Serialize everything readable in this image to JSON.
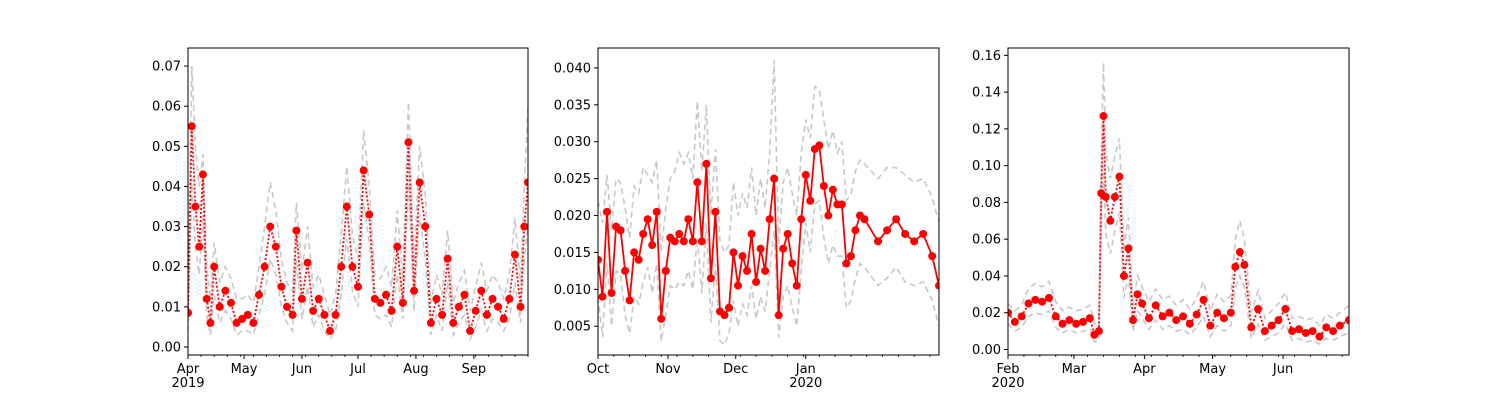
{
  "figure": {
    "background": "#ffffff",
    "series_color": "#ff0000",
    "band_color": "#c8c8c8"
  },
  "chart_data": [
    {
      "type": "line",
      "ylim": [
        -0.002,
        0.0745
      ],
      "yticks": [
        0.0,
        0.01,
        0.02,
        0.03,
        0.04,
        0.05,
        0.06,
        0.07
      ],
      "ytick_labels": [
        "0.00",
        "0.01",
        "0.02",
        "0.03",
        "0.04",
        "0.05",
        "0.06",
        "0.07"
      ],
      "xlim": [
        "2019-04-01",
        "2019-09-30"
      ],
      "xticks": [
        {
          "date": "2019-04-01",
          "label": "Apr",
          "sublabel": "2019"
        },
        {
          "date": "2019-05-01",
          "label": "May",
          "sublabel": ""
        },
        {
          "date": "2019-06-01",
          "label": "Jun",
          "sublabel": ""
        },
        {
          "date": "2019-07-01",
          "label": "Jul",
          "sublabel": ""
        },
        {
          "date": "2019-08-01",
          "label": "Aug",
          "sublabel": ""
        },
        {
          "date": "2019-09-01",
          "label": "Sep",
          "sublabel": ""
        }
      ],
      "line_style": "dotted",
      "series_x": [
        "2019-04-01",
        "2019-04-03",
        "2019-04-05",
        "2019-04-07",
        "2019-04-09",
        "2019-04-11",
        "2019-04-13",
        "2019-04-15",
        "2019-04-18",
        "2019-04-21",
        "2019-04-24",
        "2019-04-27",
        "2019-04-30",
        "2019-05-03",
        "2019-05-06",
        "2019-05-09",
        "2019-05-12",
        "2019-05-15",
        "2019-05-18",
        "2019-05-21",
        "2019-05-24",
        "2019-05-27",
        "2019-05-29",
        "2019-06-01",
        "2019-06-04",
        "2019-06-07",
        "2019-06-10",
        "2019-06-13",
        "2019-06-16",
        "2019-06-19",
        "2019-06-22",
        "2019-06-25",
        "2019-06-28",
        "2019-07-01",
        "2019-07-04",
        "2019-07-07",
        "2019-07-10",
        "2019-07-13",
        "2019-07-16",
        "2019-07-19",
        "2019-07-22",
        "2019-07-25",
        "2019-07-28",
        "2019-07-31",
        "2019-08-03",
        "2019-08-06",
        "2019-08-09",
        "2019-08-12",
        "2019-08-15",
        "2019-08-18",
        "2019-08-21",
        "2019-08-24",
        "2019-08-27",
        "2019-08-30",
        "2019-09-02",
        "2019-09-05",
        "2019-09-08",
        "2019-09-11",
        "2019-09-14",
        "2019-09-17",
        "2019-09-20",
        "2019-09-23",
        "2019-09-26",
        "2019-09-28",
        "2019-09-30"
      ],
      "series_y": [
        0.0085,
        0.055,
        0.035,
        0.025,
        0.043,
        0.012,
        0.006,
        0.02,
        0.01,
        0.014,
        0.011,
        0.006,
        0.007,
        0.008,
        0.006,
        0.013,
        0.02,
        0.03,
        0.025,
        0.015,
        0.01,
        0.008,
        0.029,
        0.012,
        0.021,
        0.009,
        0.012,
        0.008,
        0.004,
        0.008,
        0.02,
        0.035,
        0.02,
        0.015,
        0.044,
        0.033,
        0.012,
        0.011,
        0.013,
        0.009,
        0.025,
        0.011,
        0.051,
        0.014,
        0.041,
        0.03,
        0.006,
        0.012,
        0.008,
        0.022,
        0.006,
        0.01,
        0.013,
        0.004,
        0.009,
        0.014,
        0.008,
        0.012,
        0.01,
        0.007,
        0.012,
        0.023,
        0.01,
        0.03,
        0.041
      ],
      "band_upper": [
        0.015,
        0.07,
        0.05,
        0.04,
        0.048,
        0.02,
        0.012,
        0.026,
        0.016,
        0.02,
        0.017,
        0.012,
        0.012,
        0.013,
        0.011,
        0.02,
        0.03,
        0.041,
        0.034,
        0.022,
        0.016,
        0.014,
        0.036,
        0.019,
        0.03,
        0.015,
        0.018,
        0.013,
        0.008,
        0.013,
        0.028,
        0.045,
        0.028,
        0.022,
        0.054,
        0.04,
        0.018,
        0.017,
        0.02,
        0.015,
        0.034,
        0.017,
        0.061,
        0.021,
        0.05,
        0.038,
        0.011,
        0.018,
        0.013,
        0.029,
        0.011,
        0.016,
        0.019,
        0.009,
        0.015,
        0.021,
        0.014,
        0.018,
        0.016,
        0.012,
        0.018,
        0.032,
        0.016,
        0.04,
        0.06
      ],
      "band_lower": [
        0.004,
        0.042,
        0.025,
        0.018,
        0.033,
        0.008,
        0.003,
        0.013,
        0.006,
        0.009,
        0.007,
        0.003,
        0.004,
        0.004,
        0.003,
        0.008,
        0.013,
        0.022,
        0.018,
        0.01,
        0.006,
        0.004,
        0.022,
        0.007,
        0.015,
        0.005,
        0.008,
        0.004,
        0.002,
        0.004,
        0.013,
        0.027,
        0.014,
        0.01,
        0.036,
        0.026,
        0.008,
        0.007,
        0.008,
        0.005,
        0.018,
        0.007,
        0.042,
        0.009,
        0.033,
        0.022,
        0.003,
        0.008,
        0.004,
        0.016,
        0.003,
        0.006,
        0.008,
        0.002,
        0.005,
        0.009,
        0.004,
        0.007,
        0.006,
        0.004,
        0.007,
        0.016,
        0.006,
        0.022,
        0.03
      ]
    },
    {
      "type": "line",
      "ylim": [
        0.0011,
        0.0427
      ],
      "yticks": [
        0.005,
        0.01,
        0.015,
        0.02,
        0.025,
        0.03,
        0.035,
        0.04
      ],
      "ytick_labels": [
        "0.005",
        "0.010",
        "0.015",
        "0.020",
        "0.025",
        "0.030",
        "0.035",
        "0.040"
      ],
      "xlim": [
        "2019-10-01",
        "2020-02-29"
      ],
      "xticks": [
        {
          "date": "2019-10-01",
          "label": "Oct",
          "sublabel": ""
        },
        {
          "date": "2019-11-01",
          "label": "Nov",
          "sublabel": ""
        },
        {
          "date": "2019-12-01",
          "label": "Dec",
          "sublabel": ""
        },
        {
          "date": "2020-01-01",
          "label": "Jan",
          "sublabel": "2020"
        }
      ],
      "line_style": "solid",
      "series_x": [
        "2019-10-01",
        "2019-10-03",
        "2019-10-05",
        "2019-10-07",
        "2019-10-09",
        "2019-10-11",
        "2019-10-13",
        "2019-10-15",
        "2019-10-17",
        "2019-10-19",
        "2019-10-21",
        "2019-10-23",
        "2019-10-25",
        "2019-10-27",
        "2019-10-29",
        "2019-10-31",
        "2019-11-02",
        "2019-11-04",
        "2019-11-06",
        "2019-11-08",
        "2019-11-10",
        "2019-11-12",
        "2019-11-14",
        "2019-11-16",
        "2019-11-18",
        "2019-11-20",
        "2019-11-22",
        "2019-11-24",
        "2019-11-26",
        "2019-11-28",
        "2019-11-30",
        "2019-12-02",
        "2019-12-04",
        "2019-12-06",
        "2019-12-08",
        "2019-12-10",
        "2019-12-12",
        "2019-12-14",
        "2019-12-16",
        "2019-12-18",
        "2019-12-20",
        "2019-12-22",
        "2019-12-24",
        "2019-12-26",
        "2019-12-28",
        "2019-12-30",
        "2020-01-01",
        "2020-01-03",
        "2020-01-05",
        "2020-01-07",
        "2020-01-09",
        "2020-01-11",
        "2020-01-13",
        "2020-01-15",
        "2020-01-17",
        "2020-01-19",
        "2020-01-21",
        "2020-01-23",
        "2020-01-25",
        "2020-01-27",
        "2020-02-02",
        "2020-02-06",
        "2020-02-10",
        "2020-02-14",
        "2020-02-18",
        "2020-02-22",
        "2020-02-26",
        "2020-02-29"
      ],
      "series_y": [
        0.014,
        0.009,
        0.0205,
        0.0095,
        0.0185,
        0.018,
        0.0125,
        0.0085,
        0.015,
        0.014,
        0.0175,
        0.0195,
        0.016,
        0.0205,
        0.006,
        0.0125,
        0.017,
        0.0165,
        0.0175,
        0.0165,
        0.0195,
        0.0165,
        0.0245,
        0.0165,
        0.027,
        0.0115,
        0.0205,
        0.007,
        0.0065,
        0.0075,
        0.015,
        0.0105,
        0.0145,
        0.0125,
        0.0175,
        0.011,
        0.0155,
        0.0125,
        0.0195,
        0.025,
        0.0065,
        0.0155,
        0.0175,
        0.0135,
        0.0105,
        0.0195,
        0.0255,
        0.022,
        0.029,
        0.0295,
        0.024,
        0.02,
        0.0235,
        0.0215,
        0.0215,
        0.0135,
        0.0145,
        0.018,
        0.02,
        0.0195,
        0.0165,
        0.018,
        0.0195,
        0.0175,
        0.0165,
        0.0175,
        0.0145,
        0.0105
      ],
      "band_upper": [
        0.022,
        0.019,
        0.0255,
        0.018,
        0.025,
        0.0245,
        0.021,
        0.017,
        0.024,
        0.023,
        0.0265,
        0.0255,
        0.0245,
        0.0275,
        0.015,
        0.021,
        0.025,
        0.026,
        0.0285,
        0.027,
        0.0285,
        0.025,
        0.0355,
        0.026,
        0.035,
        0.02,
        0.029,
        0.0165,
        0.015,
        0.016,
        0.0245,
        0.02,
        0.023,
        0.021,
        0.0265,
        0.02,
        0.025,
        0.021,
        0.0285,
        0.041,
        0.016,
        0.0245,
        0.0265,
        0.023,
        0.02,
        0.0285,
        0.033,
        0.0305,
        0.0375,
        0.037,
        0.033,
        0.029,
        0.0315,
        0.0285,
        0.03,
        0.022,
        0.023,
        0.026,
        0.0275,
        0.027,
        0.025,
        0.0265,
        0.0265,
        0.0255,
        0.0245,
        0.025,
        0.0225,
        0.019
      ],
      "band_lower": [
        0.009,
        0.0035,
        0.0135,
        0.005,
        0.0125,
        0.012,
        0.0065,
        0.004,
        0.009,
        0.008,
        0.011,
        0.013,
        0.0095,
        0.0135,
        0.003,
        0.0065,
        0.0105,
        0.01,
        0.011,
        0.0105,
        0.0125,
        0.01,
        0.017,
        0.0095,
        0.019,
        0.0055,
        0.0135,
        0.003,
        0.0025,
        0.004,
        0.0085,
        0.005,
        0.008,
        0.0065,
        0.0105,
        0.006,
        0.009,
        0.007,
        0.0125,
        0.018,
        0.0035,
        0.009,
        0.0105,
        0.0075,
        0.005,
        0.0125,
        0.019,
        0.015,
        0.0215,
        0.022,
        0.017,
        0.0135,
        0.016,
        0.0145,
        0.0145,
        0.0075,
        0.0085,
        0.0115,
        0.0135,
        0.013,
        0.0105,
        0.0115,
        0.013,
        0.011,
        0.0105,
        0.011,
        0.0085,
        0.005
      ]
    },
    {
      "type": "line",
      "ylim": [
        -0.003,
        0.164
      ],
      "yticks": [
        0.0,
        0.02,
        0.04,
        0.06,
        0.08,
        0.1,
        0.12,
        0.14,
        0.16
      ],
      "ytick_labels": [
        "0.00",
        "0.02",
        "0.04",
        "0.06",
        "0.08",
        "0.10",
        "0.12",
        "0.14",
        "0.16"
      ],
      "xlim": [
        "2020-02-01",
        "2020-06-30"
      ],
      "xticks": [
        {
          "date": "2020-02-01",
          "label": "Feb",
          "sublabel": "2020"
        },
        {
          "date": "2020-03-01",
          "label": "Mar",
          "sublabel": ""
        },
        {
          "date": "2020-04-01",
          "label": "Apr",
          "sublabel": ""
        },
        {
          "date": "2020-05-01",
          "label": "May",
          "sublabel": ""
        },
        {
          "date": "2020-06-01",
          "label": "Jun",
          "sublabel": ""
        }
      ],
      "line_style": "dotted",
      "series_x": [
        "2020-02-01",
        "2020-02-04",
        "2020-02-07",
        "2020-02-10",
        "2020-02-13",
        "2020-02-16",
        "2020-02-19",
        "2020-02-22",
        "2020-02-25",
        "2020-02-28",
        "2020-03-02",
        "2020-03-05",
        "2020-03-08",
        "2020-03-10",
        "2020-03-12",
        "2020-03-13",
        "2020-03-14",
        "2020-03-15",
        "2020-03-17",
        "2020-03-19",
        "2020-03-21",
        "2020-03-23",
        "2020-03-25",
        "2020-03-27",
        "2020-03-29",
        "2020-03-31",
        "2020-04-03",
        "2020-04-06",
        "2020-04-09",
        "2020-04-12",
        "2020-04-15",
        "2020-04-18",
        "2020-04-21",
        "2020-04-24",
        "2020-04-27",
        "2020-04-30",
        "2020-05-03",
        "2020-05-06",
        "2020-05-09",
        "2020-05-11",
        "2020-05-13",
        "2020-05-15",
        "2020-05-18",
        "2020-05-21",
        "2020-05-24",
        "2020-05-27",
        "2020-05-30",
        "2020-06-02",
        "2020-06-05",
        "2020-06-08",
        "2020-06-11",
        "2020-06-14",
        "2020-06-17",
        "2020-06-20",
        "2020-06-23",
        "2020-06-26",
        "2020-06-30"
      ],
      "series_y": [
        0.02,
        0.015,
        0.018,
        0.025,
        0.027,
        0.026,
        0.028,
        0.018,
        0.014,
        0.016,
        0.014,
        0.015,
        0.017,
        0.008,
        0.01,
        0.085,
        0.127,
        0.083,
        0.07,
        0.083,
        0.094,
        0.04,
        0.055,
        0.016,
        0.03,
        0.025,
        0.017,
        0.024,
        0.018,
        0.02,
        0.016,
        0.018,
        0.014,
        0.019,
        0.027,
        0.013,
        0.02,
        0.017,
        0.02,
        0.045,
        0.053,
        0.046,
        0.012,
        0.022,
        0.01,
        0.013,
        0.016,
        0.022,
        0.01,
        0.011,
        0.009,
        0.01,
        0.007,
        0.012,
        0.01,
        0.013,
        0.016
      ],
      "band_upper": [
        0.025,
        0.021,
        0.024,
        0.033,
        0.036,
        0.034,
        0.037,
        0.026,
        0.021,
        0.023,
        0.021,
        0.022,
        0.024,
        0.014,
        0.017,
        0.105,
        0.156,
        0.107,
        0.093,
        0.105,
        0.115,
        0.056,
        0.072,
        0.024,
        0.04,
        0.034,
        0.026,
        0.033,
        0.027,
        0.029,
        0.024,
        0.027,
        0.022,
        0.028,
        0.037,
        0.021,
        0.03,
        0.026,
        0.029,
        0.06,
        0.07,
        0.06,
        0.02,
        0.032,
        0.017,
        0.021,
        0.025,
        0.031,
        0.017,
        0.018,
        0.016,
        0.017,
        0.013,
        0.019,
        0.017,
        0.02,
        0.024
      ],
      "band_lower": [
        0.014,
        0.01,
        0.012,
        0.018,
        0.02,
        0.019,
        0.021,
        0.012,
        0.009,
        0.011,
        0.009,
        0.01,
        0.011,
        0.004,
        0.005,
        0.066,
        0.1,
        0.063,
        0.052,
        0.064,
        0.075,
        0.028,
        0.04,
        0.01,
        0.021,
        0.017,
        0.011,
        0.016,
        0.011,
        0.013,
        0.01,
        0.011,
        0.008,
        0.012,
        0.018,
        0.007,
        0.013,
        0.01,
        0.013,
        0.033,
        0.04,
        0.034,
        0.006,
        0.014,
        0.005,
        0.007,
        0.009,
        0.014,
        0.005,
        0.006,
        0.004,
        0.005,
        0.003,
        0.006,
        0.005,
        0.007,
        0.009
      ]
    }
  ]
}
